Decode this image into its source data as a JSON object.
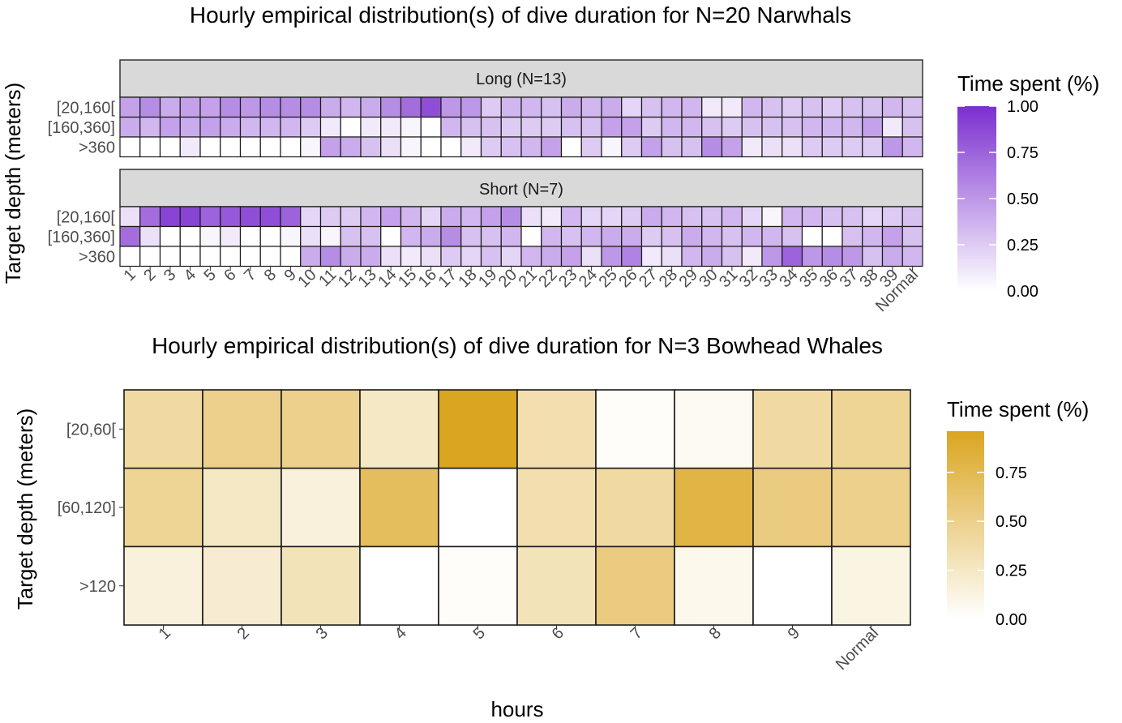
{
  "chart_data": [
    {
      "type": "heatmap",
      "title": "Hourly empirical distribution(s) of dive duration for N=20 Narwhals",
      "xlabel": "",
      "ylabel": "Target depth (meters)",
      "categories": [
        "1",
        "2",
        "3",
        "4",
        "5",
        "6",
        "7",
        "8",
        "9",
        "10",
        "11",
        "12",
        "13",
        "14",
        "15",
        "16",
        "17",
        "18",
        "19",
        "20",
        "21",
        "22",
        "23",
        "24",
        "25",
        "26",
        "27",
        "28",
        "29",
        "30",
        "31",
        "32",
        "33",
        "34",
        "35",
        "36",
        "37",
        "38",
        "39",
        "Normal"
      ],
      "rows": [
        "[20,160[",
        "[160,360]",
        ">360"
      ],
      "color_low": "#ffffff",
      "color_high": "#7b2fd0",
      "legend": {
        "title": "Time spent (%)",
        "ticks": [
          "0.00",
          "0.25",
          "0.50",
          "0.75",
          "1.00"
        ],
        "tick_values": [
          0,
          0.25,
          0.5,
          0.75,
          1.0
        ],
        "range": [
          0,
          1.0
        ]
      },
      "facets": [
        {
          "label": "Long (N=13)",
          "values": [
            [
              0.45,
              0.55,
              0.4,
              0.45,
              0.45,
              0.55,
              0.5,
              0.55,
              0.55,
              0.55,
              0.4,
              0.35,
              0.4,
              0.55,
              0.7,
              0.85,
              0.5,
              0.5,
              0.25,
              0.35,
              0.35,
              0.3,
              0.4,
              0.35,
              0.4,
              0.2,
              0.3,
              0.35,
              0.35,
              0.1,
              0.1,
              0.35,
              0.3,
              0.25,
              0.3,
              0.25,
              0.3,
              0.3,
              0.35,
              0.3
            ],
            [
              0.4,
              0.35,
              0.45,
              0.4,
              0.45,
              0.4,
              0.35,
              0.35,
              0.35,
              0.25,
              0.1,
              0.0,
              0.1,
              0.1,
              0.05,
              0.0,
              0.35,
              0.3,
              0.3,
              0.25,
              0.25,
              0.25,
              0.3,
              0.3,
              0.45,
              0.45,
              0.25,
              0.35,
              0.35,
              0.3,
              0.25,
              0.3,
              0.3,
              0.3,
              0.35,
              0.35,
              0.35,
              0.45,
              0.1,
              0.3
            ],
            [
              0.0,
              0.0,
              0.0,
              0.1,
              0.0,
              0.0,
              0.0,
              0.0,
              0.0,
              0.05,
              0.45,
              0.4,
              0.3,
              0.15,
              0.05,
              0.0,
              0.0,
              0.1,
              0.25,
              0.3,
              0.35,
              0.45,
              0.0,
              0.25,
              0.05,
              0.25,
              0.45,
              0.3,
              0.3,
              0.55,
              0.45,
              0.1,
              0.15,
              0.15,
              0.25,
              0.25,
              0.25,
              0.25,
              0.5,
              0.35
            ]
          ]
        },
        {
          "label": "Short (N=7)",
          "values": [
            [
              0.15,
              0.7,
              0.9,
              0.9,
              0.75,
              0.8,
              0.85,
              0.85,
              0.75,
              0.2,
              0.25,
              0.25,
              0.35,
              0.45,
              0.35,
              0.2,
              0.4,
              0.35,
              0.45,
              0.55,
              0.15,
              0.1,
              0.35,
              0.2,
              0.2,
              0.25,
              0.4,
              0.35,
              0.3,
              0.3,
              0.35,
              0.2,
              0.05,
              0.35,
              0.35,
              0.3,
              0.3,
              0.2,
              0.25,
              0.3
            ],
            [
              0.7,
              0.15,
              0.0,
              0.0,
              0.05,
              0.1,
              0.0,
              0.0,
              0.05,
              0.15,
              0.05,
              0.3,
              0.3,
              0.0,
              0.35,
              0.4,
              0.55,
              0.3,
              0.3,
              0.35,
              0.0,
              0.35,
              0.3,
              0.35,
              0.4,
              0.4,
              0.25,
              0.3,
              0.4,
              0.35,
              0.3,
              0.35,
              0.35,
              0.3,
              0.0,
              0.0,
              0.3,
              0.35,
              0.45,
              0.3
            ],
            [
              0.0,
              0.0,
              0.0,
              0.0,
              0.0,
              0.0,
              0.0,
              0.0,
              0.0,
              0.4,
              0.55,
              0.4,
              0.4,
              0.15,
              0.1,
              0.15,
              0.25,
              0.2,
              0.3,
              0.2,
              0.35,
              0.4,
              0.45,
              0.15,
              0.5,
              0.6,
              0.1,
              0.15,
              0.35,
              0.4,
              0.3,
              0.1,
              0.5,
              0.75,
              0.5,
              0.55,
              0.5,
              0.3,
              0.4,
              0.35
            ]
          ]
        }
      ]
    },
    {
      "type": "heatmap",
      "title": "Hourly empirical distribution(s) of dive duration for N=3 Bowhead Whales",
      "xlabel": "hours",
      "ylabel": "Target depth (meters)",
      "categories": [
        "1",
        "2",
        "3",
        "4",
        "5",
        "6",
        "7",
        "8",
        "9",
        "Normal"
      ],
      "rows": [
        "[20,60[",
        "[60,120]",
        ">120"
      ],
      "color_low": "#ffffff",
      "color_high": "#daa520",
      "legend": {
        "title": "Time spent (%)",
        "ticks": [
          "0.00",
          "0.25",
          "0.50",
          "0.75"
        ],
        "tick_values": [
          0,
          0.25,
          0.5,
          0.75
        ],
        "range": [
          0,
          0.96
        ]
      },
      "values": [
        [
          0.4,
          0.5,
          0.5,
          0.25,
          0.96,
          0.35,
          0.02,
          0.05,
          0.4,
          0.45
        ],
        [
          0.45,
          0.25,
          0.15,
          0.7,
          0.0,
          0.35,
          0.4,
          0.8,
          0.55,
          0.5
        ],
        [
          0.15,
          0.2,
          0.3,
          0.0,
          0.02,
          0.3,
          0.55,
          0.08,
          0.0,
          0.12
        ]
      ]
    }
  ]
}
